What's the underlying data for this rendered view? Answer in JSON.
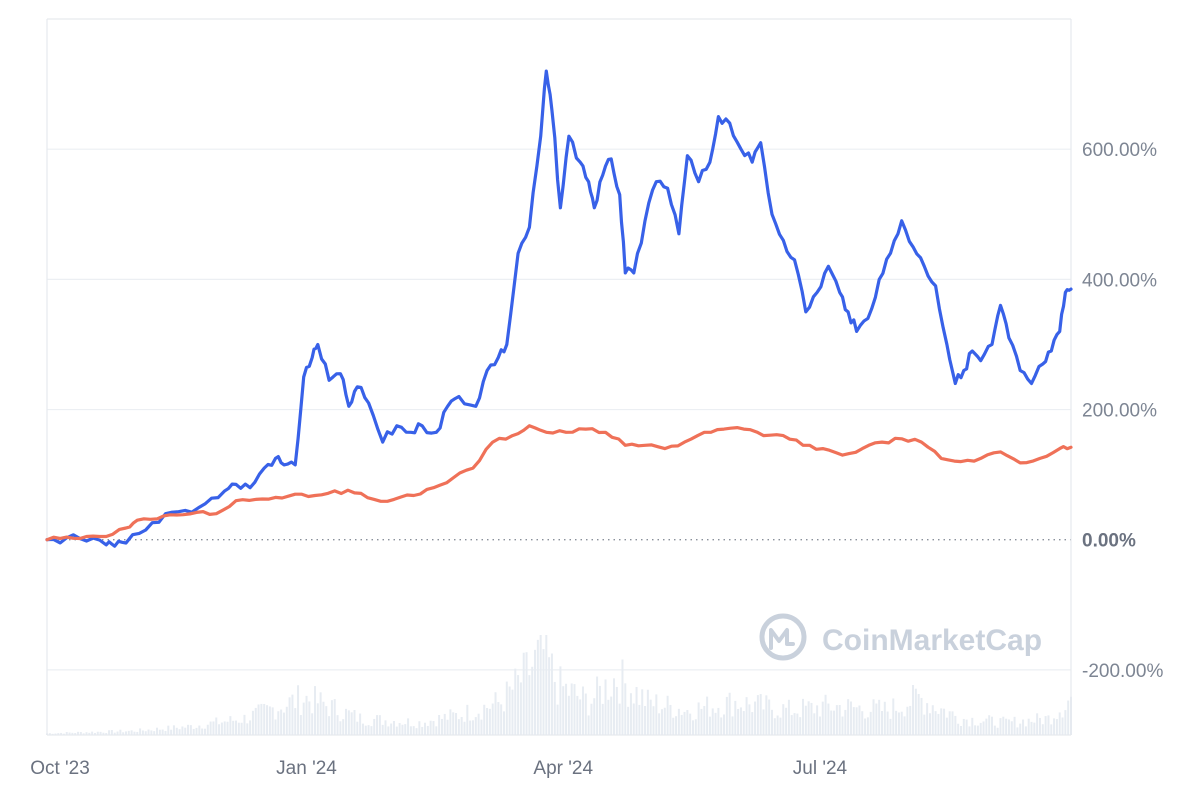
{
  "chart_data": {
    "type": "line",
    "title": "",
    "xlabel": "",
    "ylabel": "",
    "x_range": [
      "2023-10-01",
      "2024-09-28"
    ],
    "ylim": [
      -300,
      800
    ],
    "y_ticks": [
      -200,
      0,
      200,
      400,
      600
    ],
    "y_tick_labels": [
      "-200.00%",
      "0.00%",
      "200.00%",
      "400.00%",
      "600.00%"
    ],
    "zero_line": "dotted",
    "x_ticks": [
      "2023-10-01",
      "2024-01-01",
      "2024-04-01",
      "2024-07-01"
    ],
    "x_tick_labels": [
      "Oct '23",
      "Jan '24",
      "Apr '24",
      "Jul '24"
    ],
    "grid": true,
    "legend": "none",
    "watermark": "CoinMarketCap",
    "colors": {
      "series_1": "#3861e8",
      "series_2": "#ef7158",
      "grid": "#eceff3",
      "volume": "#e7ecf2",
      "axis_text": "#7d8593"
    },
    "series": [
      {
        "color": "#3861e8",
        "points": [
          [
            "2023-10-01",
            0
          ],
          [
            "2023-10-08",
            3
          ],
          [
            "2023-10-15",
            -2
          ],
          [
            "2023-10-22",
            -8
          ],
          [
            "2023-10-25",
            -10
          ],
          [
            "2023-10-29",
            -5
          ],
          [
            "2023-11-05",
            15
          ],
          [
            "2023-11-12",
            40
          ],
          [
            "2023-11-19",
            45
          ],
          [
            "2023-11-26",
            55
          ],
          [
            "2023-12-03",
            75
          ],
          [
            "2023-12-07",
            85
          ],
          [
            "2023-12-12",
            80
          ],
          [
            "2023-12-17",
            110
          ],
          [
            "2023-12-21",
            125
          ],
          [
            "2023-12-24",
            115
          ],
          [
            "2023-12-28",
            115
          ],
          [
            "2023-12-31",
            250
          ],
          [
            "2024-01-03",
            280
          ],
          [
            "2024-01-05",
            300
          ],
          [
            "2024-01-09",
            245
          ],
          [
            "2024-01-13",
            255
          ],
          [
            "2024-01-16",
            205
          ],
          [
            "2024-01-19",
            235
          ],
          [
            "2024-01-23",
            210
          ],
          [
            "2024-01-28",
            150
          ],
          [
            "2024-02-02",
            175
          ],
          [
            "2024-02-07",
            165
          ],
          [
            "2024-02-11",
            175
          ],
          [
            "2024-02-16",
            165
          ],
          [
            "2024-02-20",
            205
          ],
          [
            "2024-02-24",
            220
          ],
          [
            "2024-03-01",
            205
          ],
          [
            "2024-03-05",
            260
          ],
          [
            "2024-03-09",
            280
          ],
          [
            "2024-03-12",
            300
          ],
          [
            "2024-03-16",
            440
          ],
          [
            "2024-03-20",
            480
          ],
          [
            "2024-03-24",
            620
          ],
          [
            "2024-03-26",
            720
          ],
          [
            "2024-03-28",
            660
          ],
          [
            "2024-03-31",
            510
          ],
          [
            "2024-04-03",
            620
          ],
          [
            "2024-04-07",
            580
          ],
          [
            "2024-04-10",
            550
          ],
          [
            "2024-04-12",
            510
          ],
          [
            "2024-04-15",
            560
          ],
          [
            "2024-04-18",
            585
          ],
          [
            "2024-04-21",
            530
          ],
          [
            "2024-04-23",
            410
          ],
          [
            "2024-04-26",
            410
          ],
          [
            "2024-04-30",
            490
          ],
          [
            "2024-05-04",
            550
          ],
          [
            "2024-05-08",
            540
          ],
          [
            "2024-05-12",
            470
          ],
          [
            "2024-05-15",
            590
          ],
          [
            "2024-05-19",
            550
          ],
          [
            "2024-05-23",
            580
          ],
          [
            "2024-05-26",
            650
          ],
          [
            "2024-05-30",
            640
          ],
          [
            "2024-06-03",
            600
          ],
          [
            "2024-06-07",
            580
          ],
          [
            "2024-06-10",
            610
          ],
          [
            "2024-06-14",
            500
          ],
          [
            "2024-06-18",
            460
          ],
          [
            "2024-06-22",
            430
          ],
          [
            "2024-06-26",
            350
          ],
          [
            "2024-06-30",
            380
          ],
          [
            "2024-07-04",
            420
          ],
          [
            "2024-07-08",
            380
          ],
          [
            "2024-07-11",
            350
          ],
          [
            "2024-07-14",
            320
          ],
          [
            "2024-07-18",
            340
          ],
          [
            "2024-07-22",
            400
          ],
          [
            "2024-07-26",
            440
          ],
          [
            "2024-07-30",
            490
          ],
          [
            "2024-08-03",
            450
          ],
          [
            "2024-08-07",
            420
          ],
          [
            "2024-08-11",
            390
          ],
          [
            "2024-08-15",
            300
          ],
          [
            "2024-08-18",
            240
          ],
          [
            "2024-08-21",
            260
          ],
          [
            "2024-08-24",
            290
          ],
          [
            "2024-08-27",
            275
          ],
          [
            "2024-08-31",
            300
          ],
          [
            "2024-09-03",
            360
          ],
          [
            "2024-09-06",
            310
          ],
          [
            "2024-09-10",
            260
          ],
          [
            "2024-09-14",
            240
          ],
          [
            "2024-09-18",
            270
          ],
          [
            "2024-09-21",
            290
          ],
          [
            "2024-09-24",
            320
          ],
          [
            "2024-09-26",
            380
          ],
          [
            "2024-09-28",
            385
          ]
        ]
      },
      {
        "color": "#ef7158",
        "points": [
          [
            "2023-10-01",
            0
          ],
          [
            "2023-10-08",
            4
          ],
          [
            "2023-10-15",
            5
          ],
          [
            "2023-10-22",
            5
          ],
          [
            "2023-10-29",
            18
          ],
          [
            "2023-11-02",
            30
          ],
          [
            "2023-11-09",
            32
          ],
          [
            "2023-11-16",
            38
          ],
          [
            "2023-11-23",
            42
          ],
          [
            "2023-11-30",
            40
          ],
          [
            "2023-12-07",
            60
          ],
          [
            "2023-12-14",
            62
          ],
          [
            "2023-12-21",
            65
          ],
          [
            "2023-12-28",
            70
          ],
          [
            "2024-01-04",
            68
          ],
          [
            "2024-01-11",
            75
          ],
          [
            "2024-01-18",
            72
          ],
          [
            "2024-01-25",
            62
          ],
          [
            "2024-02-01",
            62
          ],
          [
            "2024-02-08",
            68
          ],
          [
            "2024-02-15",
            80
          ],
          [
            "2024-02-22",
            95
          ],
          [
            "2024-02-29",
            110
          ],
          [
            "2024-03-07",
            150
          ],
          [
            "2024-03-14",
            160
          ],
          [
            "2024-03-20",
            175
          ],
          [
            "2024-03-26",
            165
          ],
          [
            "2024-04-02",
            165
          ],
          [
            "2024-04-09",
            170
          ],
          [
            "2024-04-16",
            165
          ],
          [
            "2024-04-23",
            145
          ],
          [
            "2024-04-30",
            145
          ],
          [
            "2024-05-07",
            140
          ],
          [
            "2024-05-14",
            150
          ],
          [
            "2024-05-21",
            165
          ],
          [
            "2024-05-28",
            170
          ],
          [
            "2024-06-04",
            170
          ],
          [
            "2024-06-11",
            160
          ],
          [
            "2024-06-18",
            160
          ],
          [
            "2024-06-25",
            145
          ],
          [
            "2024-07-02",
            140
          ],
          [
            "2024-07-09",
            130
          ],
          [
            "2024-07-16",
            140
          ],
          [
            "2024-07-23",
            150
          ],
          [
            "2024-07-30",
            155
          ],
          [
            "2024-08-06",
            150
          ],
          [
            "2024-08-13",
            125
          ],
          [
            "2024-08-20",
            120
          ],
          [
            "2024-08-27",
            125
          ],
          [
            "2024-09-03",
            135
          ],
          [
            "2024-09-10",
            118
          ],
          [
            "2024-09-17",
            125
          ],
          [
            "2024-09-24",
            140
          ],
          [
            "2024-09-28",
            142
          ]
        ]
      }
    ],
    "volume": {
      "relative": true,
      "points": [
        [
          "2023-10-01",
          2
        ],
        [
          "2023-11-01",
          5
        ],
        [
          "2023-11-20",
          10
        ],
        [
          "2023-12-10",
          20
        ],
        [
          "2023-12-31",
          45
        ],
        [
          "2024-01-05",
          40
        ],
        [
          "2024-01-20",
          20
        ],
        [
          "2024-02-10",
          15
        ],
        [
          "2024-02-25",
          25
        ],
        [
          "2024-03-10",
          40
        ],
        [
          "2024-03-18",
          70
        ],
        [
          "2024-03-25",
          100
        ],
        [
          "2024-03-30",
          60
        ],
        [
          "2024-04-10",
          40
        ],
        [
          "2024-04-20",
          70
        ],
        [
          "2024-05-01",
          40
        ],
        [
          "2024-05-15",
          30
        ],
        [
          "2024-06-01",
          40
        ],
        [
          "2024-06-20",
          30
        ],
        [
          "2024-07-05",
          35
        ],
        [
          "2024-07-25",
          30
        ],
        [
          "2024-08-05",
          45
        ],
        [
          "2024-08-20",
          20
        ],
        [
          "2024-09-05",
          15
        ],
        [
          "2024-09-20",
          20
        ],
        [
          "2024-09-28",
          45
        ]
      ]
    }
  }
}
